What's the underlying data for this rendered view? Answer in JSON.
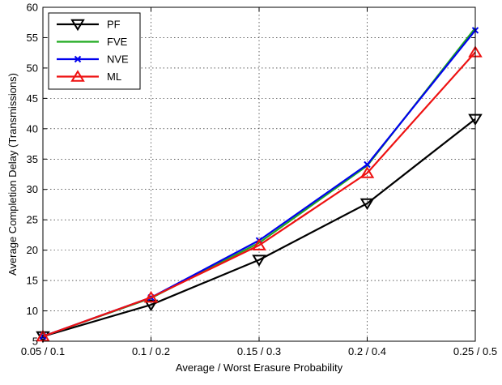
{
  "chart_data": {
    "type": "line",
    "title": "",
    "xlabel": "Average / Worst Erasure Probability",
    "ylabel": "Average Completion Delay (Transmissions)",
    "categories": [
      "0.05 / 0.1",
      "0.1 / 0.2",
      "0.15 / 0.3",
      "0.2 / 0.4",
      "0.25 / 0.5"
    ],
    "ylim": [
      5,
      60
    ],
    "yticks": [
      5,
      10,
      15,
      20,
      25,
      30,
      35,
      40,
      45,
      50,
      55,
      60
    ],
    "grid": true,
    "legend_position": "top-left",
    "series": [
      {
        "name": "PF",
        "color": "#000000",
        "marker": "triangle-down",
        "values": [
          5.8,
          11.0,
          18.4,
          27.7,
          41.6
        ]
      },
      {
        "name": "FVE",
        "color": "#22aa22",
        "marker": "none",
        "values": [
          5.8,
          12.1,
          21.2,
          33.9,
          56.6
        ]
      },
      {
        "name": "NVE",
        "color": "#0000ee",
        "marker": "x",
        "values": [
          5.8,
          12.2,
          21.6,
          34.1,
          56.2
        ]
      },
      {
        "name": "ML",
        "color": "#ee1111",
        "marker": "triangle-up",
        "values": [
          5.8,
          12.2,
          20.8,
          32.7,
          52.6
        ]
      }
    ]
  }
}
